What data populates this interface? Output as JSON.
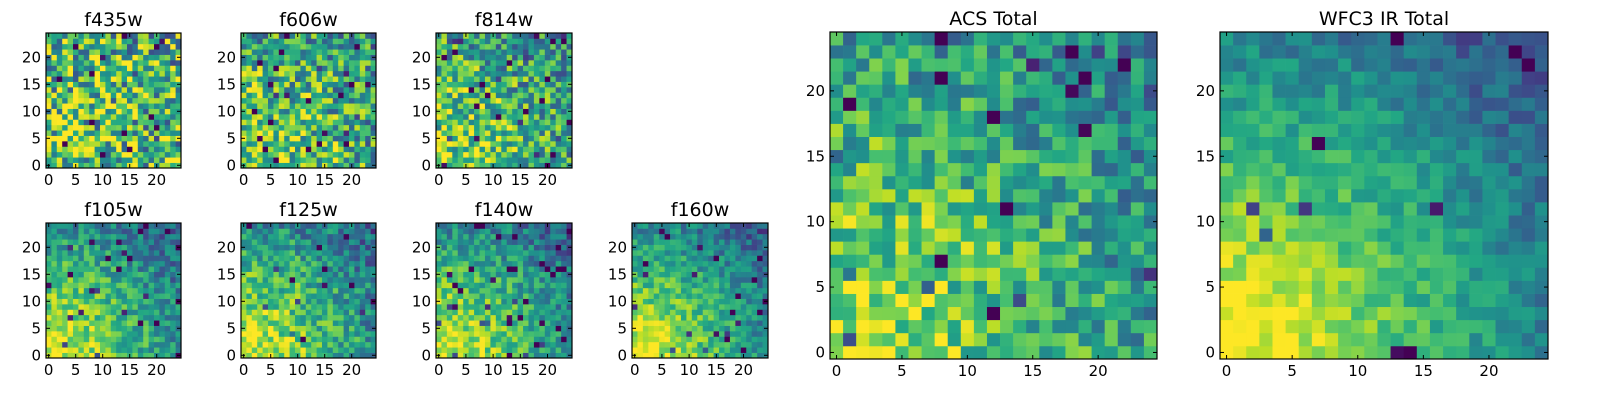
{
  "chart_data": [
    {
      "type": "heatmap",
      "title": "f435w",
      "xlim": [
        0,
        24
      ],
      "ylim": [
        0,
        24
      ],
      "xticks": [
        0,
        5,
        10,
        15,
        20
      ],
      "yticks": [
        0,
        5,
        10,
        15,
        20
      ],
      "colormap": "viridis",
      "gradient": 0.15,
      "noise": 0.85,
      "dark_spots": 0.04,
      "seed": 11
    },
    {
      "type": "heatmap",
      "title": "f606w",
      "xlim": [
        0,
        24
      ],
      "ylim": [
        0,
        24
      ],
      "xticks": [
        0,
        5,
        10,
        15,
        20
      ],
      "yticks": [
        0,
        5,
        10,
        15,
        20
      ],
      "colormap": "viridis",
      "gradient": 0.35,
      "noise": 0.7,
      "dark_spots": 0.04,
      "seed": 23
    },
    {
      "type": "heatmap",
      "title": "f814w",
      "xlim": [
        0,
        24
      ],
      "ylim": [
        0,
        24
      ],
      "xticks": [
        0,
        5,
        10,
        15,
        20
      ],
      "yticks": [
        0,
        5,
        10,
        15,
        20
      ],
      "colormap": "viridis",
      "gradient": 0.45,
      "noise": 0.65,
      "dark_spots": 0.05,
      "seed": 37
    },
    {
      "type": "heatmap",
      "title": "f105w",
      "xlim": [
        0,
        24
      ],
      "ylim": [
        0,
        24
      ],
      "xticks": [
        0,
        5,
        10,
        15,
        20
      ],
      "yticks": [
        0,
        5,
        10,
        15,
        20
      ],
      "colormap": "viridis",
      "gradient": 0.75,
      "noise": 0.4,
      "dark_spots": 0.04,
      "seed": 41
    },
    {
      "type": "heatmap",
      "title": "f125w",
      "xlim": [
        0,
        24
      ],
      "ylim": [
        0,
        24
      ],
      "xticks": [
        0,
        5,
        10,
        15,
        20
      ],
      "yticks": [
        0,
        5,
        10,
        15,
        20
      ],
      "colormap": "viridis",
      "gradient": 0.7,
      "noise": 0.45,
      "dark_spots": 0.03,
      "seed": 53
    },
    {
      "type": "heatmap",
      "title": "f140w",
      "xlim": [
        0,
        24
      ],
      "ylim": [
        0,
        24
      ],
      "xticks": [
        0,
        5,
        10,
        15,
        20
      ],
      "yticks": [
        0,
        5,
        10,
        15,
        20
      ],
      "colormap": "viridis",
      "gradient": 0.75,
      "noise": 0.4,
      "dark_spots": 0.04,
      "seed": 67
    },
    {
      "type": "heatmap",
      "title": "f160w",
      "xlim": [
        0,
        24
      ],
      "ylim": [
        0,
        24
      ],
      "xticks": [
        0,
        5,
        10,
        15,
        20
      ],
      "yticks": [
        0,
        5,
        10,
        15,
        20
      ],
      "colormap": "viridis",
      "gradient": 0.8,
      "noise": 0.35,
      "dark_spots": 0.03,
      "seed": 71
    },
    {
      "type": "heatmap",
      "title": "ACS Total",
      "xlim": [
        0,
        24
      ],
      "ylim": [
        0,
        24
      ],
      "xticks": [
        0,
        5,
        10,
        15,
        20
      ],
      "yticks": [
        0,
        5,
        10,
        15,
        20
      ],
      "colormap": "viridis",
      "gradient": 0.55,
      "noise": 0.5,
      "dark_spots": 0.03,
      "seed": 89
    },
    {
      "type": "heatmap",
      "title": "WFC3 IR Total",
      "xlim": [
        0,
        24
      ],
      "ylim": [
        0,
        24
      ],
      "xticks": [
        0,
        5,
        10,
        15,
        20
      ],
      "yticks": [
        0,
        5,
        10,
        15,
        20
      ],
      "colormap": "viridis",
      "gradient": 0.9,
      "noise": 0.25,
      "dark_spots": 0.02,
      "seed": 97
    }
  ]
}
